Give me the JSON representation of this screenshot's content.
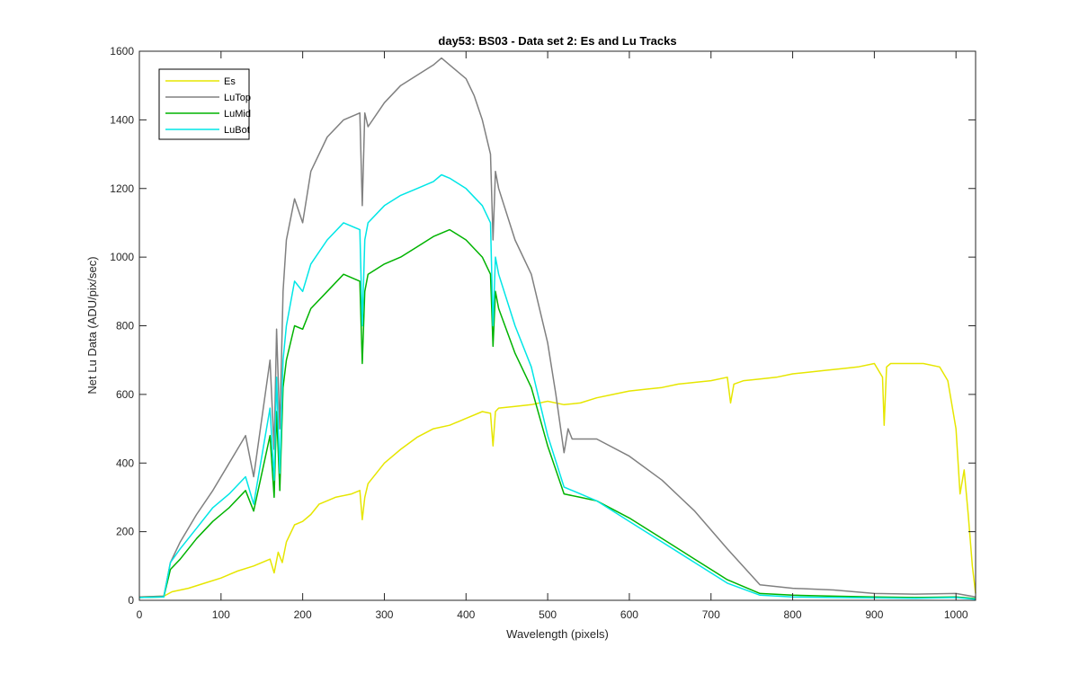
{
  "chart_data": {
    "type": "line",
    "title": "day53: BS03 - Data set 2: Es and Lu Tracks",
    "xlabel": "Wavelength (pixels)",
    "ylabel": "Net Lu Data (ADU/pix/sec)",
    "xlim": [
      0,
      1024
    ],
    "ylim": [
      0,
      1600
    ],
    "xticks": [
      "0",
      "100",
      "200",
      "300",
      "400",
      "500",
      "600",
      "700",
      "800",
      "900",
      "1000"
    ],
    "yticks": [
      "0",
      "200",
      "400",
      "600",
      "800",
      "1000",
      "1200",
      "1400",
      "1600"
    ],
    "grid": false,
    "legend_position": "top-left",
    "series": [
      {
        "name": "Es",
        "color": "#e6e600",
        "x": [
          0,
          30,
          40,
          60,
          80,
          100,
          120,
          140,
          160,
          165,
          170,
          175,
          180,
          190,
          200,
          210,
          220,
          240,
          260,
          270,
          273,
          276,
          280,
          300,
          320,
          340,
          360,
          380,
          400,
          420,
          430,
          433,
          436,
          440,
          460,
          480,
          500,
          520,
          540,
          560,
          580,
          600,
          620,
          640,
          660,
          680,
          700,
          720,
          724,
          728,
          740,
          760,
          780,
          800,
          820,
          840,
          860,
          880,
          900,
          910,
          912,
          915,
          920,
          940,
          960,
          980,
          990,
          1000,
          1005,
          1010,
          1015,
          1020,
          1024
        ],
        "values": [
          10,
          12,
          25,
          35,
          50,
          65,
          85,
          100,
          120,
          80,
          140,
          110,
          170,
          220,
          230,
          250,
          280,
          300,
          310,
          320,
          235,
          300,
          340,
          400,
          440,
          475,
          500,
          510,
          530,
          550,
          545,
          450,
          550,
          560,
          565,
          570,
          580,
          570,
          575,
          590,
          600,
          610,
          615,
          620,
          630,
          635,
          640,
          650,
          575,
          630,
          640,
          645,
          650,
          660,
          665,
          670,
          675,
          680,
          690,
          650,
          510,
          680,
          690,
          690,
          690,
          680,
          640,
          500,
          310,
          380,
          250,
          100,
          20
        ]
      },
      {
        "name": "LuTop",
        "color": "#808080",
        "x": [
          0,
          30,
          38,
          50,
          70,
          90,
          110,
          130,
          140,
          160,
          165,
          168,
          172,
          176,
          180,
          190,
          200,
          210,
          230,
          250,
          270,
          273,
          276,
          280,
          300,
          320,
          340,
          360,
          370,
          380,
          400,
          410,
          420,
          430,
          433,
          436,
          440,
          460,
          480,
          500,
          510,
          520,
          525,
          530,
          560,
          600,
          640,
          680,
          720,
          760,
          800,
          850,
          900,
          950,
          1000,
          1024
        ],
        "values": [
          10,
          12,
          110,
          170,
          250,
          320,
          400,
          480,
          360,
          700,
          440,
          790,
          500,
          900,
          1050,
          1170,
          1100,
          1250,
          1350,
          1400,
          1420,
          1150,
          1420,
          1380,
          1450,
          1500,
          1530,
          1560,
          1580,
          1560,
          1520,
          1470,
          1400,
          1300,
          1050,
          1250,
          1200,
          1050,
          950,
          750,
          600,
          430,
          500,
          470,
          470,
          420,
          350,
          260,
          150,
          45,
          35,
          30,
          20,
          18,
          20,
          10
        ]
      },
      {
        "name": "LuMid",
        "color": "#00b300",
        "x": [
          0,
          30,
          38,
          50,
          70,
          90,
          110,
          130,
          140,
          160,
          165,
          168,
          172,
          176,
          180,
          190,
          200,
          210,
          230,
          250,
          270,
          273,
          276,
          280,
          300,
          320,
          340,
          360,
          380,
          400,
          420,
          430,
          433,
          436,
          440,
          460,
          480,
          500,
          520,
          540,
          560,
          600,
          640,
          680,
          720,
          760,
          800,
          850,
          900,
          950,
          1000,
          1024
        ],
        "values": [
          8,
          10,
          90,
          120,
          180,
          230,
          270,
          320,
          260,
          480,
          300,
          550,
          320,
          620,
          700,
          800,
          790,
          850,
          900,
          950,
          930,
          690,
          900,
          950,
          980,
          1000,
          1030,
          1060,
          1080,
          1050,
          1000,
          950,
          740,
          900,
          850,
          720,
          620,
          450,
          310,
          300,
          290,
          240,
          180,
          120,
          60,
          20,
          15,
          12,
          10,
          8,
          10,
          5
        ]
      },
      {
        "name": "LuBot",
        "color": "#00e6e6",
        "x": [
          0,
          30,
          38,
          50,
          70,
          90,
          110,
          130,
          140,
          160,
          165,
          168,
          172,
          176,
          180,
          190,
          200,
          210,
          230,
          250,
          270,
          273,
          276,
          280,
          300,
          320,
          340,
          360,
          370,
          380,
          400,
          420,
          430,
          433,
          436,
          440,
          460,
          480,
          500,
          520,
          540,
          560,
          600,
          640,
          680,
          720,
          760,
          800,
          850,
          900,
          950,
          1000,
          1024
        ],
        "values": [
          8,
          10,
          110,
          150,
          210,
          270,
          310,
          360,
          280,
          560,
          350,
          650,
          370,
          700,
          800,
          930,
          900,
          980,
          1050,
          1100,
          1080,
          800,
          1050,
          1100,
          1150,
          1180,
          1200,
          1220,
          1240,
          1230,
          1200,
          1150,
          1100,
          800,
          1000,
          950,
          800,
          680,
          480,
          330,
          310,
          290,
          230,
          170,
          110,
          50,
          15,
          10,
          8,
          7,
          6,
          8,
          3
        ]
      }
    ]
  }
}
